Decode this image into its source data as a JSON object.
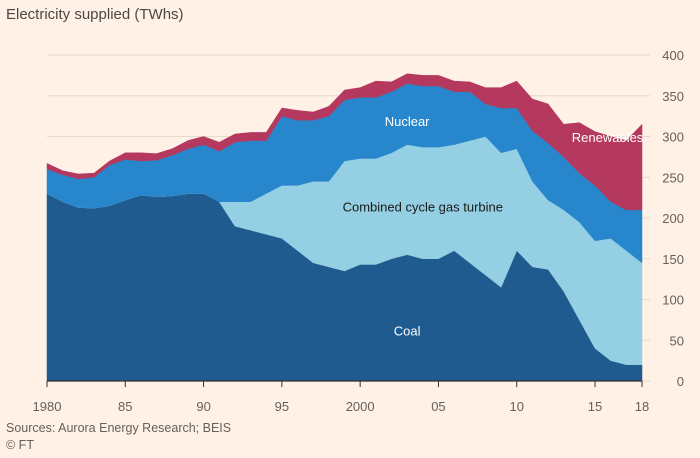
{
  "chart_data": {
    "type": "area",
    "stacked": true,
    "title": "Electricity supplied (TWhs)",
    "xlabel": "",
    "ylabel": "",
    "x": [
      1980,
      1981,
      1982,
      1983,
      1984,
      1985,
      1986,
      1987,
      1988,
      1989,
      1990,
      1991,
      1992,
      1993,
      1994,
      1995,
      1996,
      1997,
      1998,
      1999,
      2000,
      2001,
      2002,
      2003,
      2004,
      2005,
      2006,
      2007,
      2008,
      2009,
      2010,
      2011,
      2012,
      2013,
      2014,
      2015,
      2016,
      2017,
      2018
    ],
    "xtick_values": [
      1980,
      1985,
      1990,
      1995,
      2000,
      2005,
      2010,
      2015,
      2018
    ],
    "xtick_labels": [
      "1980",
      "85",
      "90",
      "95",
      "2000",
      "05",
      "10",
      "15",
      "18"
    ],
    "ylim": [
      0,
      400
    ],
    "yticks": [
      0,
      50,
      100,
      150,
      200,
      250,
      300,
      350,
      400
    ],
    "ytick_labels": [
      "0",
      "50",
      "100",
      "150",
      "200",
      "250",
      "300",
      "350",
      "400"
    ],
    "yaxis_position": "right",
    "series": [
      {
        "name": "Coal",
        "color": "#205b8f",
        "values": [
          230,
          220,
          213,
          212,
          215,
          222,
          228,
          226,
          227,
          230,
          230,
          220,
          190,
          185,
          180,
          175,
          160,
          145,
          140,
          135,
          143,
          143,
          150,
          155,
          150,
          150,
          160,
          145,
          130,
          115,
          160,
          140,
          137,
          110,
          75,
          40,
          25,
          20,
          20
        ]
      },
      {
        "name": "Combined cycle gas turbine",
        "color": "#94cfe4",
        "values": [
          0,
          0,
          0,
          0,
          0,
          0,
          0,
          0,
          0,
          0,
          0,
          0,
          30,
          35,
          50,
          65,
          80,
          100,
          105,
          135,
          130,
          130,
          130,
          135,
          137,
          137,
          130,
          150,
          170,
          165,
          125,
          105,
          85,
          100,
          120,
          132,
          150,
          140,
          125
        ]
      },
      {
        "name": "Nuclear",
        "color": "#2887cc",
        "values": [
          30,
          33,
          35,
          38,
          50,
          50,
          42,
          45,
          50,
          55,
          60,
          62,
          73,
          75,
          65,
          85,
          80,
          75,
          80,
          75,
          75,
          75,
          75,
          75,
          75,
          75,
          65,
          60,
          40,
          55,
          50,
          62,
          70,
          65,
          60,
          68,
          45,
          50,
          65
        ]
      },
      {
        "name": "Renewables",
        "color": "#b5385e",
        "values": [
          7,
          5,
          6,
          5,
          5,
          8,
          10,
          8,
          8,
          10,
          10,
          11,
          10,
          10,
          10,
          10,
          12,
          10,
          12,
          12,
          12,
          20,
          12,
          12,
          13,
          13,
          13,
          12,
          20,
          25,
          33,
          39,
          48,
          40,
          62,
          66,
          80,
          85,
          105
        ]
      }
    ],
    "area_labels": [
      "Nuclear",
      "Combined cycle gas turbine",
      "Coal",
      "Renewables"
    ],
    "source": "Sources: Aurora Energy Research; BEIS",
    "copyright": "© FT"
  }
}
